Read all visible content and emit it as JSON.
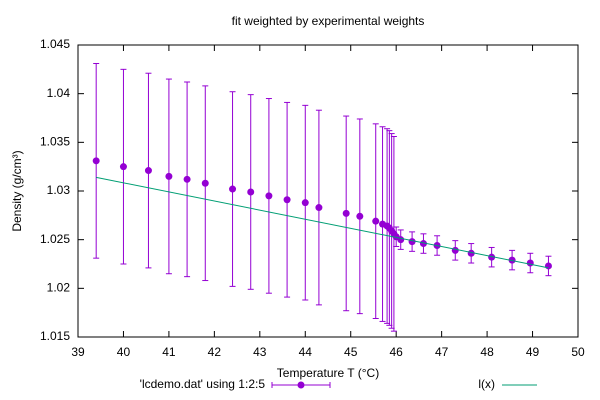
{
  "chart_data": {
    "type": "scatter",
    "title": "fit weighted by experimental weights",
    "xlabel": "Temperature T (°C)",
    "ylabel": "Density (g/cm³)",
    "xlim": [
      39,
      50
    ],
    "xticks": [
      39,
      40,
      41,
      42,
      43,
      44,
      45,
      46,
      47,
      48,
      49,
      50
    ],
    "ylim": [
      1.015,
      1.045
    ],
    "yticks": [
      1.015,
      1.02,
      1.025,
      1.03,
      1.035,
      1.04,
      1.045
    ],
    "grid": false,
    "legend": "bottom",
    "series": [
      {
        "name": "'lcdemo.dat' using 1:2:5",
        "type": "errorbars",
        "color": "#9400d3",
        "x": [
          39.4,
          40.0,
          40.55,
          41.0,
          41.4,
          41.8,
          42.4,
          42.8,
          43.2,
          43.6,
          44.0,
          44.3,
          44.9,
          45.2,
          45.55,
          45.7,
          45.8,
          45.85,
          45.9,
          45.95,
          46.0,
          46.1,
          46.35,
          46.6,
          46.9,
          47.3,
          47.65,
          48.1,
          48.55,
          48.95,
          49.35
        ],
        "values": [
          1.0331,
          1.0325,
          1.0321,
          1.0315,
          1.0312,
          1.0308,
          1.0302,
          1.0299,
          1.0295,
          1.0291,
          1.0288,
          1.0283,
          1.0277,
          1.0274,
          1.0269,
          1.0266,
          1.0264,
          1.0262,
          1.0259,
          1.0256,
          1.0253,
          1.025,
          1.0248,
          1.0246,
          1.0244,
          1.0239,
          1.0236,
          1.0232,
          1.0229,
          1.0226,
          1.0223
        ],
        "errors": [
          0.01,
          0.01,
          0.01,
          0.01,
          0.01,
          0.01,
          0.01,
          0.01,
          0.01,
          0.01,
          0.01,
          0.01,
          0.01,
          0.01,
          0.01,
          0.01,
          0.01,
          0.01,
          0.01,
          0.01,
          0.001,
          0.001,
          0.001,
          0.001,
          0.001,
          0.001,
          0.001,
          0.001,
          0.001,
          0.001,
          0.001
        ]
      },
      {
        "name": "l(x)",
        "type": "line",
        "color": "#009e73",
        "x": [
          39.4,
          49.35
        ],
        "values": [
          1.0314,
          1.0221
        ]
      }
    ]
  }
}
